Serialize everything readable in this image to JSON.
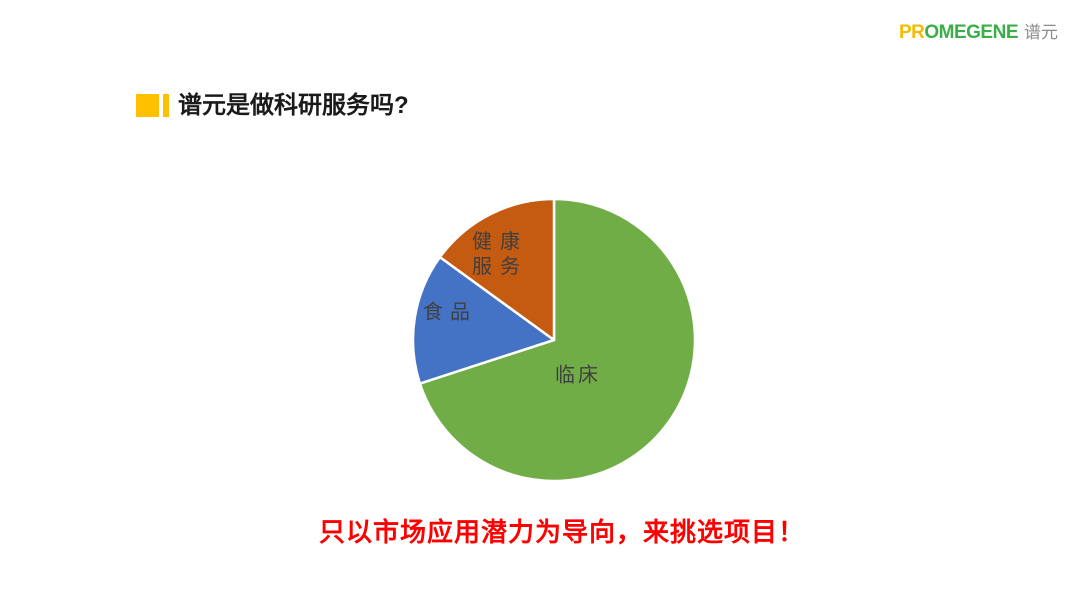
{
  "logo": {
    "text_primary": "PR",
    "text_secondary": "OMEGENE",
    "text_cjk": "谱元",
    "color_primary": "#F2BC00",
    "color_secondary": "#3BAE49",
    "color_cjk": "#8C8C8C"
  },
  "header": {
    "title": "谱元是做科研服务吗?",
    "marker_color": "#FFC000"
  },
  "chart_data": {
    "type": "pie",
    "title": "",
    "categories": [
      "临床",
      "食品",
      "健康服务"
    ],
    "values": [
      70,
      15,
      15
    ],
    "values_are_estimates": true,
    "colors": [
      "#70AD47",
      "#4472C4",
      "#C55A11"
    ],
    "label_color": "#404040",
    "start_angle_deg": 0,
    "direction": "clockwise",
    "legend_position": "none",
    "labels_inside": true,
    "slice_border_color": "#FFFFFF"
  },
  "footer": {
    "tagline": "只以市场应用潜力为导向，来挑选项目！",
    "color": "#FF0000"
  }
}
